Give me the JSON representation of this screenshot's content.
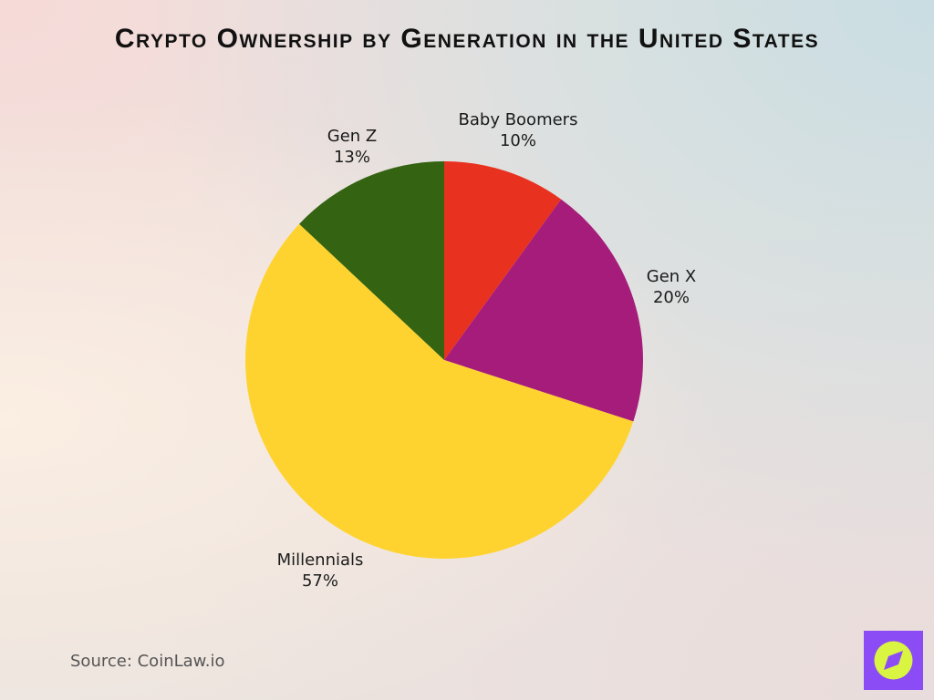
{
  "chart_data": {
    "type": "pie",
    "title": "Crypto Ownership by Generation in the United States",
    "categories": [
      "Baby Boomers",
      "Gen X",
      "Millennials",
      "Gen Z"
    ],
    "values": [
      10,
      20,
      57,
      13
    ],
    "value_labels": [
      "10%",
      "20%",
      "57%",
      "13%"
    ],
    "colors": [
      "#e8321f",
      "#a61c7a",
      "#fed330",
      "#346311"
    ],
    "source": "Source: CoinLaw.io"
  }
}
